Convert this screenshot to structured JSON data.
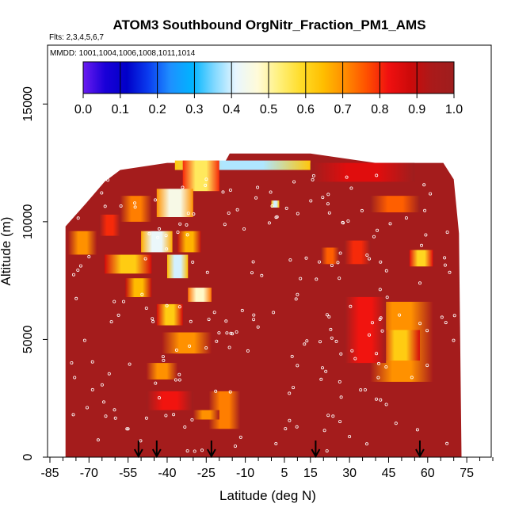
{
  "chart_data": {
    "type": "heatmap",
    "title": "ATOM3 Southbound OrgNitr_Fraction_PM1_AMS",
    "flights_label": "Flts: 2,3,4,5,6,7",
    "dates_label": "MMDD: 1001,1004,1006,1008,1011,1014",
    "xlabel": "Latitude (deg N)",
    "ylabel": "Altitude (m)",
    "xlim": [
      -85,
      85
    ],
    "ylim": [
      0,
      17500
    ],
    "x_ticks": [
      -85,
      -70,
      -55,
      -40,
      -25,
      -10,
      5,
      15,
      30,
      45,
      60,
      75
    ],
    "y_ticks": [
      0,
      5000,
      10000,
      15000
    ],
    "colorbar": {
      "range": [
        0.0,
        1.0
      ],
      "tick_labels": [
        "0.0",
        "0.1",
        "0.2",
        "0.3",
        "0.4",
        "0.5",
        "0.6",
        "0.7",
        "0.8",
        "0.9",
        "1.0"
      ],
      "colors": [
        "#6a1cf0",
        "#1a00d8",
        "#0000c8",
        "#0a3df0",
        "#1e90ff",
        "#00b4ff",
        "#7fd8ff",
        "#e8f6ff",
        "#fffbd8",
        "#fff07a",
        "#ffdc28",
        "#ffbe00",
        "#ff8c00",
        "#ff5000",
        "#f01010",
        "#cc0a0a",
        "#aa1a1a",
        "#9e1e1e"
      ]
    },
    "background_value": 0.97,
    "profile_markers_lat": [
      -51,
      -44,
      -23,
      17,
      57
    ],
    "cells": [
      {
        "lat": [
          -37,
          15
        ],
        "alt": [
          12200,
          12600
        ],
        "value": 0.38
      },
      {
        "lat": [
          -34,
          -20
        ],
        "alt": [
          11300,
          12600
        ],
        "value": 0.55
      },
      {
        "lat": [
          -44,
          -30
        ],
        "alt": [
          10200,
          11400
        ],
        "value": 0.45
      },
      {
        "lat": [
          -58,
          -46
        ],
        "alt": [
          10000,
          11100
        ],
        "value": 0.72
      },
      {
        "lat": [
          -66,
          -58
        ],
        "alt": [
          9400,
          10300
        ],
        "value": 0.8
      },
      {
        "lat": [
          -78,
          -67
        ],
        "alt": [
          8600,
          9600
        ],
        "value": 0.7
      },
      {
        "lat": [
          -50,
          -38
        ],
        "alt": [
          8700,
          9600
        ],
        "value": 0.42
      },
      {
        "lat": [
          -36,
          -27
        ],
        "alt": [
          8700,
          9600
        ],
        "value": 0.66
      },
      {
        "lat": [
          -64,
          -46
        ],
        "alt": [
          7800,
          8600
        ],
        "value": 0.62
      },
      {
        "lat": [
          -40,
          -32
        ],
        "alt": [
          7600,
          8600
        ],
        "value": 0.4
      },
      {
        "lat": [
          -56,
          -46
        ],
        "alt": [
          6800,
          7600
        ],
        "value": 0.65
      },
      {
        "lat": [
          -32,
          -23
        ],
        "alt": [
          6600,
          7200
        ],
        "value": 0.48
      },
      {
        "lat": [
          -44,
          -34
        ],
        "alt": [
          5600,
          6500
        ],
        "value": 0.62
      },
      {
        "lat": [
          -42,
          -23
        ],
        "alt": [
          4400,
          5300
        ],
        "value": 0.7
      },
      {
        "lat": [
          -48,
          -36
        ],
        "alt": [
          3300,
          4000
        ],
        "value": 0.7
      },
      {
        "lat": [
          -48,
          -30
        ],
        "alt": [
          2000,
          2800
        ],
        "value": 0.82
      },
      {
        "lat": [
          -24,
          -12
        ],
        "alt": [
          1200,
          2800
        ],
        "value": 0.72
      },
      {
        "lat": [
          -30,
          -20
        ],
        "alt": [
          1600,
          2000
        ],
        "value": 0.7
      },
      {
        "lat": [
          15,
          55
        ],
        "alt": [
          11700,
          12500
        ],
        "value": 0.85
      },
      {
        "lat": [
          38,
          57
        ],
        "alt": [
          10400,
          11100
        ],
        "value": 0.75
      },
      {
        "lat": [
          28,
          38
        ],
        "alt": [
          8200,
          9200
        ],
        "value": 0.8
      },
      {
        "lat": [
          53,
          62
        ],
        "alt": [
          8100,
          8800
        ],
        "value": 0.6
      },
      {
        "lat": [
          19,
          26
        ],
        "alt": [
          8200,
          8900
        ],
        "value": 0.75
      },
      {
        "lat": [
          38,
          62
        ],
        "alt": [
          3200,
          6600
        ],
        "value": 0.7
      },
      {
        "lat": [
          42,
          57
        ],
        "alt": [
          4100,
          5400
        ],
        "value": 0.62
      },
      {
        "lat": [
          28,
          44
        ],
        "alt": [
          4000,
          6800
        ],
        "value": 0.82
      },
      {
        "lat": [
          0,
          3
        ],
        "alt": [
          10600,
          10900
        ],
        "value": 0.4
      }
    ]
  }
}
